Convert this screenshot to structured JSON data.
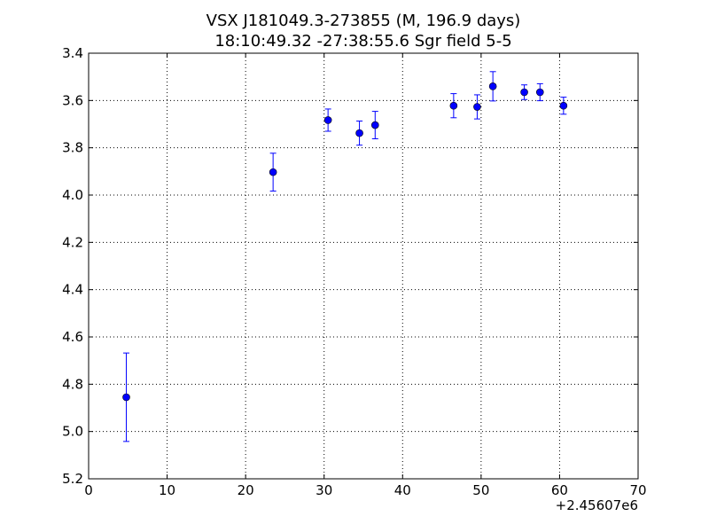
{
  "chart_data": {
    "type": "scatter",
    "title": "VSX J181049.3-273855 (M, 196.9 days)",
    "subtitle": "18:10:49.32 -27:38:55.6 Sgr field 5-5",
    "xlabel": "",
    "ylabel": "",
    "x_offset_label": "+2.45607e6",
    "xlim": [
      0,
      70
    ],
    "ylim": [
      5.2,
      3.4
    ],
    "y_inverted": true,
    "grid": true,
    "x_ticks": [
      0,
      10,
      20,
      30,
      40,
      50,
      60,
      70
    ],
    "x_tick_labels": [
      "0",
      "10",
      "20",
      "30",
      "40",
      "50",
      "60",
      "70"
    ],
    "y_ticks": [
      3.4,
      3.6,
      3.8,
      4.0,
      4.2,
      4.4,
      4.6,
      4.8,
      5.0,
      5.2
    ],
    "y_tick_labels": [
      "3.4",
      "3.6",
      "3.8",
      "4.0",
      "4.2",
      "4.4",
      "4.6",
      "4.8",
      "5.0",
      "5.2"
    ],
    "marker_color": "#0000ff",
    "points": [
      {
        "x": 4.8,
        "y": 4.855,
        "err": 0.187
      },
      {
        "x": 23.5,
        "y": 3.903,
        "err": 0.08
      },
      {
        "x": 30.5,
        "y": 3.683,
        "err": 0.047
      },
      {
        "x": 34.5,
        "y": 3.738,
        "err": 0.051
      },
      {
        "x": 36.5,
        "y": 3.704,
        "err": 0.058
      },
      {
        "x": 46.5,
        "y": 3.622,
        "err": 0.051
      },
      {
        "x": 49.5,
        "y": 3.627,
        "err": 0.051
      },
      {
        "x": 51.5,
        "y": 3.54,
        "err": 0.062
      },
      {
        "x": 55.5,
        "y": 3.565,
        "err": 0.031
      },
      {
        "x": 57.5,
        "y": 3.565,
        "err": 0.036
      },
      {
        "x": 60.5,
        "y": 3.622,
        "err": 0.036
      }
    ]
  }
}
